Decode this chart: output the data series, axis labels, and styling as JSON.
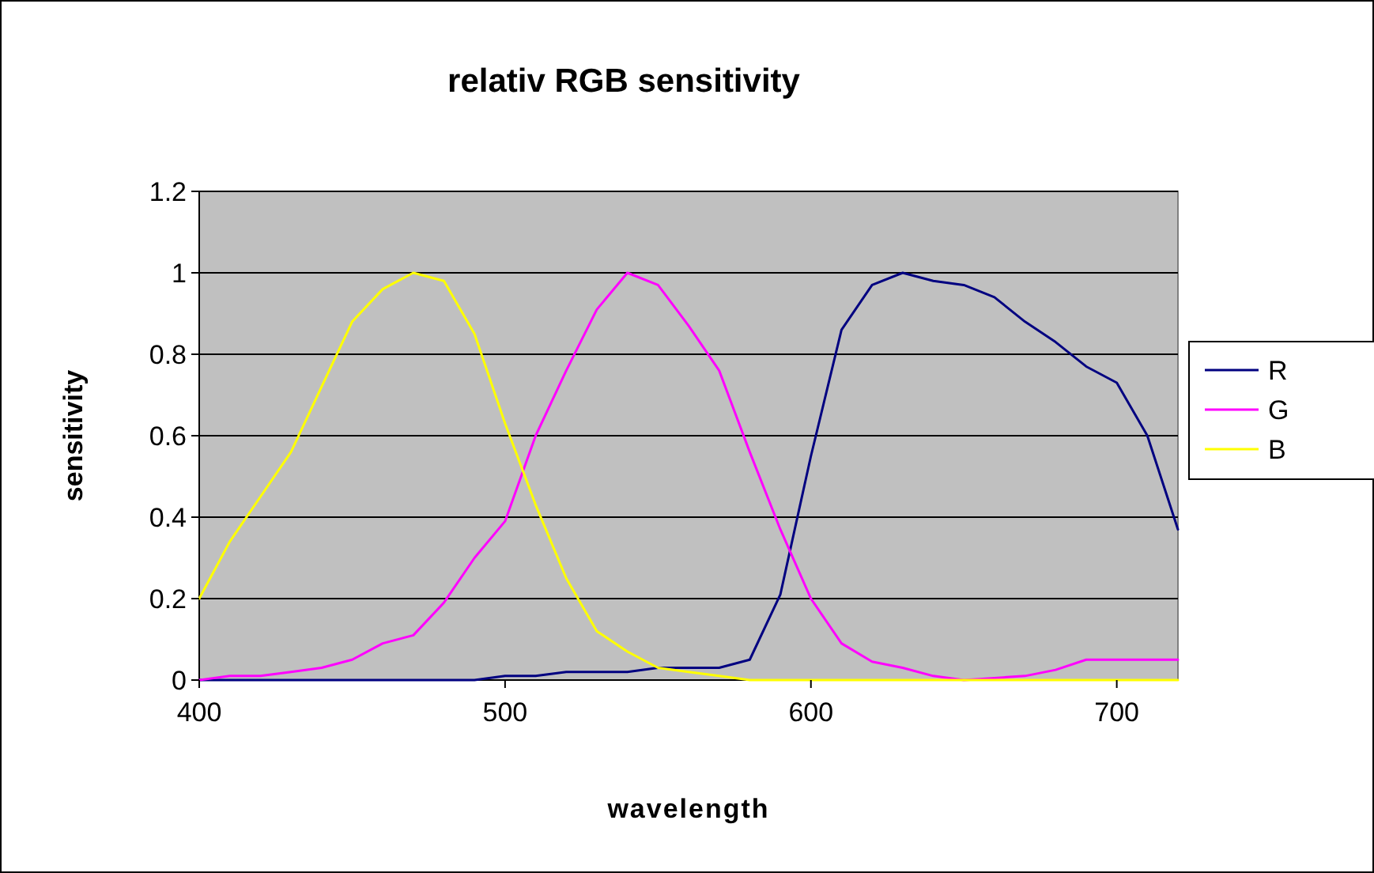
{
  "chart_data": {
    "type": "line",
    "title": "relativ RGB sensitivity",
    "xlabel": "wavelength",
    "ylabel": "sensitivity",
    "x": [
      400,
      410,
      420,
      430,
      440,
      450,
      460,
      470,
      480,
      490,
      500,
      510,
      520,
      530,
      540,
      550,
      560,
      570,
      580,
      590,
      600,
      610,
      620,
      630,
      640,
      650,
      660,
      670,
      680,
      690,
      700,
      710,
      720
    ],
    "series": [
      {
        "name": "R",
        "color": "#000080",
        "values": [
          0,
          0,
          0,
          0,
          0,
          0,
          0,
          0,
          0,
          0,
          0.01,
          0.01,
          0.02,
          0.02,
          0.02,
          0.03,
          0.03,
          0.03,
          0.05,
          0.21,
          0.55,
          0.86,
          0.97,
          1.0,
          0.98,
          0.97,
          0.94,
          0.88,
          0.83,
          0.77,
          0.73,
          0.6,
          0.37
        ]
      },
      {
        "name": "G",
        "color": "#ff00ff",
        "values": [
          0,
          0.01,
          0.01,
          0.02,
          0.03,
          0.05,
          0.09,
          0.11,
          0.19,
          0.3,
          0.39,
          0.6,
          0.76,
          0.91,
          1.0,
          0.97,
          0.87,
          0.76,
          0.56,
          0.37,
          0.2,
          0.09,
          0.045,
          0.03,
          0.01,
          0,
          0.005,
          0.01,
          0.025,
          0.05,
          0.05,
          0.05,
          0.05
        ]
      },
      {
        "name": "B",
        "color": "#ffff00",
        "values": [
          0.2,
          0.34,
          0.45,
          0.56,
          0.72,
          0.88,
          0.96,
          1.0,
          0.98,
          0.85,
          0.63,
          0.43,
          0.25,
          0.12,
          0.07,
          0.03,
          0.02,
          0.01,
          0,
          0,
          0,
          0,
          0,
          0,
          0,
          0,
          0,
          0,
          0,
          0,
          0,
          0,
          0
        ]
      }
    ],
    "xlim": [
      400,
      720
    ],
    "xticks": [
      400,
      500,
      600,
      700
    ],
    "ylim": [
      0,
      1.2
    ],
    "yticks": [
      0,
      0.2,
      0.4,
      0.6,
      0.8,
      1,
      1.2
    ],
    "grid": "y",
    "legend": "right",
    "marker": "none",
    "line_style": "solid"
  }
}
